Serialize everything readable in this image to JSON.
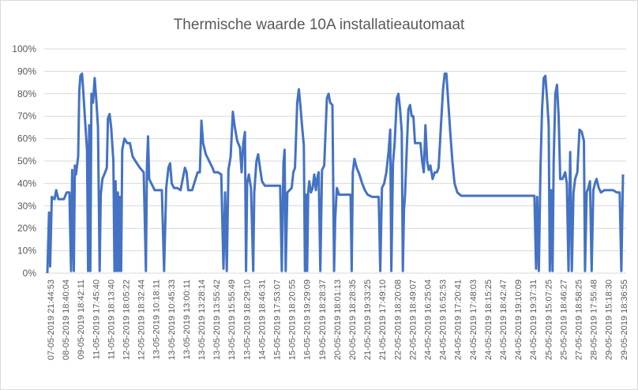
{
  "chart_data": {
    "type": "line",
    "title": "Thermische waarde 10A installatieautomaat",
    "xlabel": "",
    "ylabel": "",
    "ylim": [
      0,
      1
    ],
    "ytick_labels": [
      "0%",
      "10%",
      "20%",
      "30%",
      "40%",
      "50%",
      "60%",
      "70%",
      "80%",
      "90%",
      "100%"
    ],
    "grid": true,
    "legend": "none",
    "line_color": "#4472c4",
    "x_tick_labels": [
      "07-05-2019 21:44:53",
      "08-05-2019 18:40:04",
      "09-05-2019 18:42:11",
      "11-05-2019 17:45:40",
      "11-05-2019 18:13:40",
      "12-05-2019 18:05:22",
      "12-05-2019 18:32:44",
      "13-05-2019 10:18:11",
      "13-05-2019 10:45:33",
      "13-05-2019 13:00:11",
      "13-05-2019 13:28:14",
      "13-05-2019 13:55:42",
      "13-05-2019 15:55:49",
      "13-05-2019 18:29:10",
      "14-05-2019 18:46:31",
      "15-05-2019 17:53:07",
      "15-05-2019 18:20:55",
      "16-05-2019 19:29:09",
      "19-05-2019 18:28:37",
      "20-05-2019 18:01:13",
      "20-05-2019 18:28:35",
      "21-05-2019 19:33:25",
      "21-05-2019 17:49:10",
      "22-05-2019 18:20:08",
      "22-05-2019 18:49:07",
      "24-05-2019 16:25:04",
      "24-05-2019 16:52:53",
      "24-05-2019 17:20:41",
      "24-05-2019 17:48:03",
      "24-05-2019 18:15:25",
      "24-05-2019 18:42:47",
      "24-05-2019 19:10:09",
      "24-05-2019 19:37:31",
      "25-05-2019 15:07:25",
      "25-05-2019 18:46:27",
      "27-05-2019 18:58:25",
      "28-05-2019 17:55:48",
      "29-05-2019 15:18:30",
      "29-05-2019 18:36:55"
    ],
    "series": [
      {
        "values": [
          [
            0,
            0
          ],
          [
            0.3,
            0.27
          ],
          [
            0.5,
            0.03
          ],
          [
            0.8,
            0.34
          ],
          [
            1.3,
            0.33
          ],
          [
            1.6,
            0.37
          ],
          [
            2.0,
            0.33
          ],
          [
            3.0,
            0.33
          ],
          [
            3.5,
            0.36
          ],
          [
            4.0,
            0.36
          ],
          [
            4.3,
            0.01
          ],
          [
            4.5,
            0.46
          ],
          [
            4.8,
            0.01
          ],
          [
            5.0,
            0.48
          ],
          [
            5.2,
            0.44
          ],
          [
            5.6,
            0.52
          ],
          [
            5.8,
            0.81
          ],
          [
            6.0,
            0.88
          ],
          [
            6.3,
            0.89
          ],
          [
            6.5,
            0.82
          ],
          [
            6.8,
            0.7
          ],
          [
            7.2,
            0.55
          ],
          [
            7.4,
            0.01
          ],
          [
            7.6,
            0.66
          ],
          [
            7.8,
            0.01
          ],
          [
            8.0,
            0.8
          ],
          [
            8.3,
            0.76
          ],
          [
            8.6,
            0.87
          ],
          [
            8.9,
            0.77
          ],
          [
            9.2,
            0.65
          ],
          [
            9.5,
            0.01
          ],
          [
            9.7,
            0.35
          ],
          [
            10.0,
            0.42
          ],
          [
            10.5,
            0.45
          ],
          [
            10.8,
            0.47
          ],
          [
            11.0,
            0.69
          ],
          [
            11.3,
            0.71
          ],
          [
            11.6,
            0.65
          ],
          [
            12.0,
            0.5
          ],
          [
            12.2,
            0.01
          ],
          [
            12.4,
            0.41
          ],
          [
            12.6,
            0.01
          ],
          [
            12.8,
            0.36
          ],
          [
            13.0,
            0.01
          ],
          [
            13.2,
            0.34
          ],
          [
            13.4,
            0.01
          ],
          [
            13.6,
            0.55
          ],
          [
            14.0,
            0.6
          ],
          [
            14.5,
            0.58
          ],
          [
            15.0,
            0.58
          ],
          [
            15.5,
            0.52
          ],
          [
            16.0,
            0.5
          ],
          [
            16.8,
            0.47
          ],
          [
            17.5,
            0.45
          ],
          [
            17.9,
            0.01
          ],
          [
            18.1,
            0.48
          ],
          [
            18.3,
            0.61
          ],
          [
            18.5,
            0.42
          ],
          [
            18.9,
            0.4
          ],
          [
            19.5,
            0.37
          ],
          [
            20.3,
            0.37
          ],
          [
            20.8,
            0.37
          ],
          [
            21.2,
            0.01
          ],
          [
            21.6,
            0.38
          ],
          [
            22.0,
            0.47
          ],
          [
            22.3,
            0.49
          ],
          [
            22.6,
            0.4
          ],
          [
            23.0,
            0.38
          ],
          [
            23.6,
            0.38
          ],
          [
            24.2,
            0.37
          ],
          [
            24.6,
            0.42
          ],
          [
            25.0,
            0.47
          ],
          [
            25.3,
            0.45
          ],
          [
            25.6,
            0.37
          ],
          [
            26.3,
            0.37
          ],
          [
            26.8,
            0.41
          ],
          [
            27.3,
            0.45
          ],
          [
            27.7,
            0.45
          ],
          [
            28.0,
            0.68
          ],
          [
            28.3,
            0.58
          ],
          [
            28.8,
            0.53
          ],
          [
            29.4,
            0.5
          ],
          [
            30.0,
            0.47
          ],
          [
            30.3,
            0.45
          ],
          [
            31.0,
            0.45
          ],
          [
            31.6,
            0.44
          ],
          [
            32.0,
            0.02
          ],
          [
            32.3,
            0.36
          ],
          [
            32.6,
            0.01
          ],
          [
            32.9,
            0.46
          ],
          [
            33.3,
            0.52
          ],
          [
            33.7,
            0.72
          ],
          [
            34.0,
            0.66
          ],
          [
            34.5,
            0.59
          ],
          [
            35.0,
            0.56
          ],
          [
            35.3,
            0.45
          ],
          [
            35.6,
            0.58
          ],
          [
            35.9,
            0.63
          ],
          [
            36.1,
            0.01
          ],
          [
            36.3,
            0.4
          ],
          [
            36.6,
            0.44
          ],
          [
            37.0,
            0.38
          ],
          [
            37.4,
            0.01
          ],
          [
            37.6,
            0.36
          ],
          [
            38.0,
            0.5
          ],
          [
            38.3,
            0.53
          ],
          [
            38.7,
            0.46
          ],
          [
            39.0,
            0.41
          ],
          [
            39.5,
            0.39
          ],
          [
            40.5,
            0.39
          ],
          [
            41.5,
            0.39
          ],
          [
            42.3,
            0.39
          ],
          [
            42.6,
            0.01
          ],
          [
            42.9,
            0.49
          ],
          [
            43.1,
            0.55
          ],
          [
            43.3,
            0.01
          ],
          [
            43.6,
            0.36
          ],
          [
            44.0,
            0.37
          ],
          [
            44.4,
            0.38
          ],
          [
            44.7,
            0.45
          ],
          [
            45.0,
            0.47
          ],
          [
            45.4,
            0.76
          ],
          [
            45.7,
            0.82
          ],
          [
            46.0,
            0.74
          ],
          [
            46.3,
            0.65
          ],
          [
            46.6,
            0.57
          ],
          [
            46.8,
            0.01
          ],
          [
            47.0,
            0.35
          ],
          [
            47.2,
            0.01
          ],
          [
            47.4,
            0.36
          ],
          [
            47.6,
            0.41
          ],
          [
            47.9,
            0.36
          ],
          [
            48.2,
            0.38
          ],
          [
            48.5,
            0.44
          ],
          [
            48.8,
            0.37
          ],
          [
            49.0,
            0.42
          ],
          [
            49.3,
            0.45
          ],
          [
            49.6,
            0.01
          ],
          [
            49.9,
            0.46
          ],
          [
            50.3,
            0.48
          ],
          [
            50.8,
            0.78
          ],
          [
            51.1,
            0.8
          ],
          [
            51.4,
            0.76
          ],
          [
            51.8,
            0.75
          ],
          [
            52.1,
            0.01
          ],
          [
            52.3,
            0.24
          ],
          [
            52.6,
            0.38
          ],
          [
            53.0,
            0.35
          ],
          [
            53.5,
            0.35
          ],
          [
            54.0,
            0.35
          ],
          [
            54.5,
            0.35
          ],
          [
            55.1,
            0.35
          ],
          [
            55.3,
            0.01
          ],
          [
            55.5,
            0.45
          ],
          [
            55.8,
            0.51
          ],
          [
            56.2,
            0.47
          ],
          [
            56.7,
            0.44
          ],
          [
            57.2,
            0.4
          ],
          [
            57.7,
            0.37
          ],
          [
            58.2,
            0.35
          ],
          [
            59.0,
            0.34
          ],
          [
            59.7,
            0.34
          ],
          [
            60.2,
            0.34
          ],
          [
            60.5,
            0.01
          ],
          [
            60.8,
            0.38
          ],
          [
            61.2,
            0.4
          ],
          [
            61.6,
            0.45
          ],
          [
            62.0,
            0.54
          ],
          [
            62.3,
            0.64
          ],
          [
            62.5,
            0.01
          ],
          [
            62.8,
            0.49
          ],
          [
            63.1,
            0.58
          ],
          [
            63.5,
            0.78
          ],
          [
            63.8,
            0.8
          ],
          [
            64.1,
            0.73
          ],
          [
            64.4,
            0.63
          ],
          [
            64.6,
            0.01
          ],
          [
            64.8,
            0.28
          ],
          [
            65.0,
            0.35
          ],
          [
            65.3,
            0.55
          ],
          [
            65.6,
            0.73
          ],
          [
            65.9,
            0.75
          ],
          [
            66.2,
            0.7
          ],
          [
            66.5,
            0.7
          ],
          [
            66.8,
            0.58
          ],
          [
            67.3,
            0.58
          ],
          [
            67.8,
            0.58
          ],
          [
            68.1,
            0.5
          ],
          [
            68.4,
            0.45
          ],
          [
            68.7,
            0.66
          ],
          [
            69.0,
            0.5
          ],
          [
            69.3,
            0.46
          ],
          [
            69.6,
            0.48
          ],
          [
            70.0,
            0.42
          ],
          [
            70.4,
            0.45
          ],
          [
            70.8,
            0.45
          ],
          [
            71.1,
            0.47
          ],
          [
            71.5,
            0.65
          ],
          [
            71.9,
            0.82
          ],
          [
            72.2,
            0.89
          ],
          [
            72.5,
            0.89
          ],
          [
            72.8,
            0.78
          ],
          [
            73.2,
            0.63
          ],
          [
            73.6,
            0.5
          ],
          [
            74.0,
            0.4
          ],
          [
            74.5,
            0.36
          ],
          [
            75.2,
            0.345
          ],
          [
            76.5,
            0.345
          ],
          [
            80,
            0.345
          ],
          [
            84,
            0.345
          ],
          [
            87,
            0.345
          ],
          [
            88.5,
            0.345
          ],
          [
            88.8,
            0.02
          ],
          [
            89.0,
            0.34
          ],
          [
            89.3,
            0.01
          ],
          [
            89.6,
            0.47
          ],
          [
            89.9,
            0.73
          ],
          [
            90.2,
            0.87
          ],
          [
            90.5,
            0.88
          ],
          [
            90.8,
            0.78
          ],
          [
            91.1,
            0.66
          ],
          [
            91.3,
            0.01
          ],
          [
            91.6,
            0.37
          ],
          [
            91.8,
            0.01
          ],
          [
            92.0,
            0.5
          ],
          [
            92.3,
            0.8
          ],
          [
            92.6,
            0.84
          ],
          [
            92.9,
            0.7
          ],
          [
            93.2,
            0.42
          ],
          [
            93.6,
            0.42
          ],
          [
            94.1,
            0.45
          ],
          [
            94.4,
            0.4
          ],
          [
            94.7,
            0.01
          ],
          [
            95.0,
            0.54
          ],
          [
            95.3,
            0.01
          ],
          [
            95.6,
            0.36
          ],
          [
            95.9,
            0.42
          ],
          [
            96.3,
            0.45
          ],
          [
            96.7,
            0.64
          ],
          [
            97.1,
            0.63
          ],
          [
            97.5,
            0.59
          ],
          [
            97.7,
            0.01
          ],
          [
            98.0,
            0.36
          ],
          [
            98.3,
            0.38
          ],
          [
            98.6,
            0.41
          ],
          [
            98.9,
            0.01
          ],
          [
            99.2,
            0.37
          ],
          [
            99.5,
            0.4
          ],
          [
            99.8,
            0.42
          ],
          [
            100.2,
            0.38
          ],
          [
            100.6,
            0.36
          ],
          [
            101.2,
            0.37
          ],
          [
            102.0,
            0.37
          ],
          [
            102.8,
            0.37
          ],
          [
            103.5,
            0.36
          ],
          [
            104.0,
            0.36
          ],
          [
            104.3,
            0.01
          ],
          [
            104.6,
            0.44
          ]
        ]
      }
    ]
  }
}
